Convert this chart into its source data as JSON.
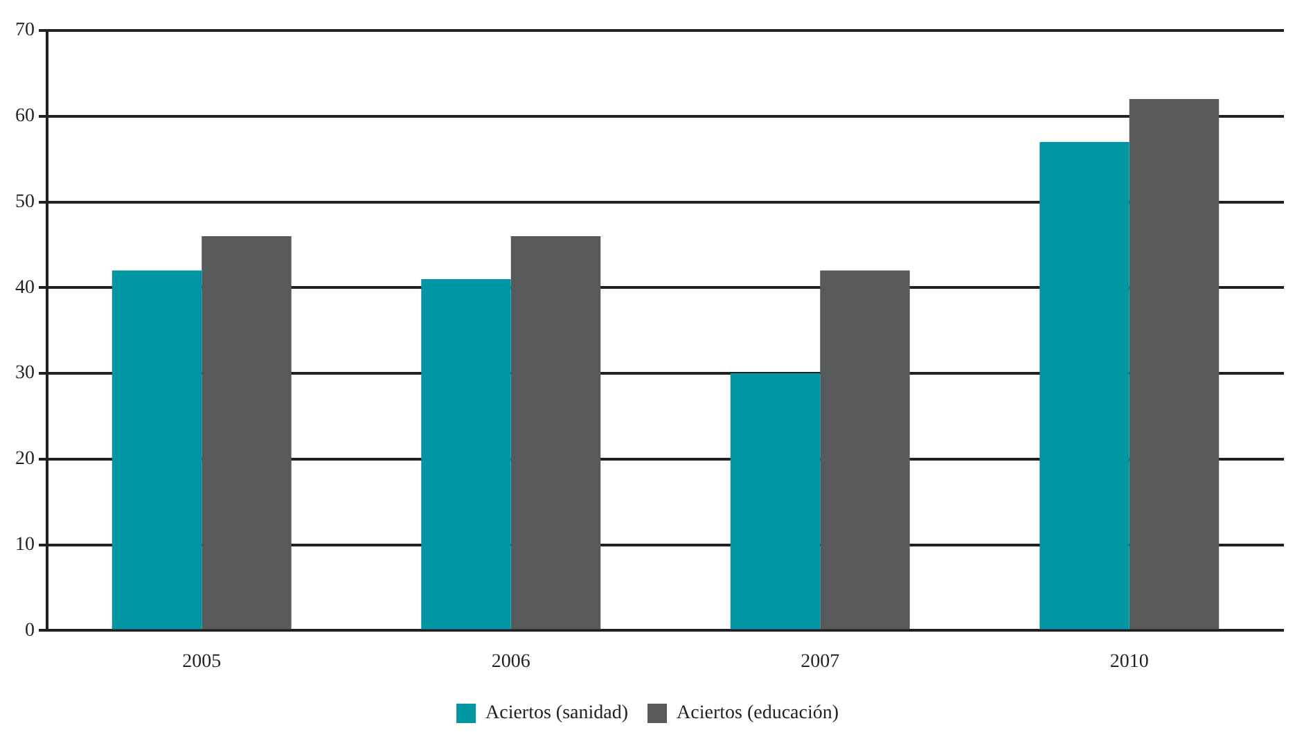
{
  "chart_data": {
    "type": "bar",
    "categories": [
      "2005",
      "2006",
      "2007",
      "2010"
    ],
    "series": [
      {
        "name": "Aciertos (sanidad)",
        "color": "#0096a3",
        "values": [
          42,
          41,
          30,
          57
        ]
      },
      {
        "name": "Aciertos (educación)",
        "color": "#58595b",
        "values": [
          46,
          46,
          42,
          62
        ]
      }
    ],
    "ylim": [
      0,
      70
    ],
    "yticks": [
      0,
      10,
      20,
      30,
      40,
      50,
      60,
      70
    ],
    "grid": "y",
    "legend": "bottom"
  }
}
